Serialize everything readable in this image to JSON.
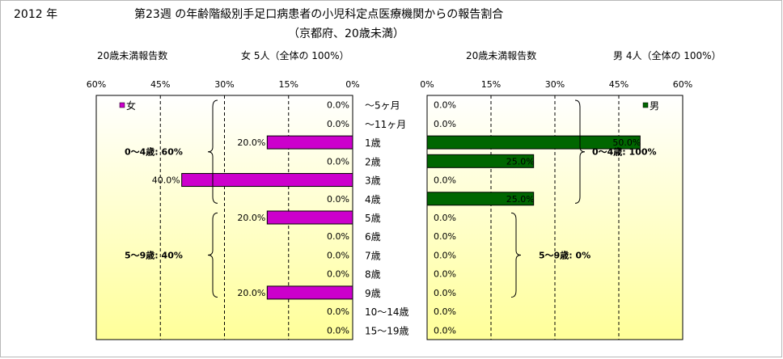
{
  "header": {
    "year": "2012 年",
    "title": "第23週 の年齢階級別手足口病患者の小児科定点医療機関からの報告割合",
    "subtitle": "（京都府、20歳未満）"
  },
  "colors": {
    "female": "#cc00cc",
    "male": "#006600",
    "plot_bg_top": "#ffffff",
    "plot_bg_bottom": "#ffff99"
  },
  "chart_data": [
    {
      "type": "bar",
      "orientation": "horizontal",
      "direction": "reversed",
      "axis_caption": "20歳未満報告数",
      "summary": "女  5人（全体の  100%）",
      "legend": "女",
      "legend_position": "top-left",
      "categories": [
        "～5ヶ月",
        "～11ヶ月",
        "1歳",
        "2歳",
        "3歳",
        "4歳",
        "5歳",
        "6歳",
        "7歳",
        "8歳",
        "9歳",
        "10～14歳",
        "15～19歳"
      ],
      "values": [
        0,
        0,
        20,
        0,
        40,
        0,
        20,
        0,
        0,
        0,
        20,
        0,
        0
      ],
      "data_labels": [
        "0.0%",
        "0.0%",
        "20.0%",
        "0.0%",
        "40.0%",
        "0.0%",
        "20.0%",
        "0.0%",
        "0.0%",
        "0.0%",
        "20.0%",
        "0.0%",
        "0.0%"
      ],
      "xlim": [
        0,
        60
      ],
      "ticks": [
        "60%",
        "45%",
        "30%",
        "15%",
        "0%"
      ],
      "grid": true,
      "annotations": [
        {
          "text": "0～4歳: 60%",
          "from": 0,
          "to": 5
        },
        {
          "text": "5～9歳: 40%",
          "from": 6,
          "to": 10
        }
      ]
    },
    {
      "type": "bar",
      "orientation": "horizontal",
      "axis_caption": "20歳未満報告数",
      "summary": "男  4人（全体の  100%）",
      "legend": "男",
      "legend_position": "top-right",
      "categories": [
        "～5ヶ月",
        "～11ヶ月",
        "1歳",
        "2歳",
        "3歳",
        "4歳",
        "5歳",
        "6歳",
        "7歳",
        "8歳",
        "9歳",
        "10～14歳",
        "15～19歳"
      ],
      "values": [
        0,
        0,
        50,
        25,
        0,
        25,
        0,
        0,
        0,
        0,
        0,
        0,
        0
      ],
      "data_labels": [
        "0.0%",
        "0.0%",
        "50.0%",
        "25.0%",
        "0.0%",
        "25.0%",
        "0.0%",
        "0.0%",
        "0.0%",
        "0.0%",
        "0.0%",
        "0.0%",
        "0.0%"
      ],
      "xlim": [
        0,
        60
      ],
      "ticks": [
        "0%",
        "15%",
        "30%",
        "45%",
        "60%"
      ],
      "grid": true,
      "annotations": [
        {
          "text": "0～4歳: 100%",
          "from": 0,
          "to": 5
        },
        {
          "text": "5～9歳: 0%",
          "from": 6,
          "to": 10
        }
      ]
    }
  ]
}
